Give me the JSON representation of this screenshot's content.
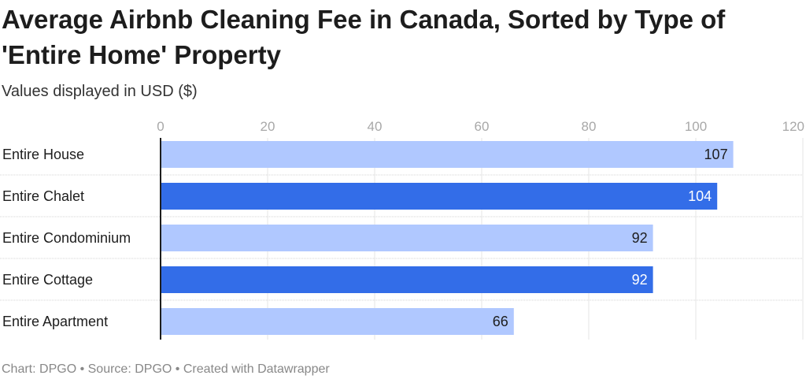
{
  "title": "Average Airbnb Cleaning Fee in Canada, Sorted by Type of 'Entire Home' Property",
  "subtitle": "Values displayed in USD ($)",
  "footer": "Chart: DPGO • Source: DPGO • Created with Datawrapper",
  "colors": {
    "light_bar": "#b0c8ff",
    "dark_bar": "#336de8",
    "grid": "#e4e4e4",
    "separator": "#d6d6d6",
    "axis": "#1d1d1d"
  },
  "chart_data": {
    "type": "bar",
    "orientation": "horizontal",
    "title": "Average Airbnb Cleaning Fee in Canada, Sorted by Type of 'Entire Home' Property",
    "subtitle": "Values displayed in USD ($)",
    "xlim": [
      0,
      120
    ],
    "ticks": [
      0,
      20,
      40,
      60,
      80,
      100,
      120
    ],
    "grid": true,
    "categories": [
      "Entire House",
      "Entire Chalet",
      "Entire Condominium",
      "Entire Cottage",
      "Entire Apartment"
    ],
    "values": [
      107,
      104,
      92,
      92,
      66
    ],
    "highlighted": [
      false,
      true,
      false,
      true,
      false
    ]
  }
}
